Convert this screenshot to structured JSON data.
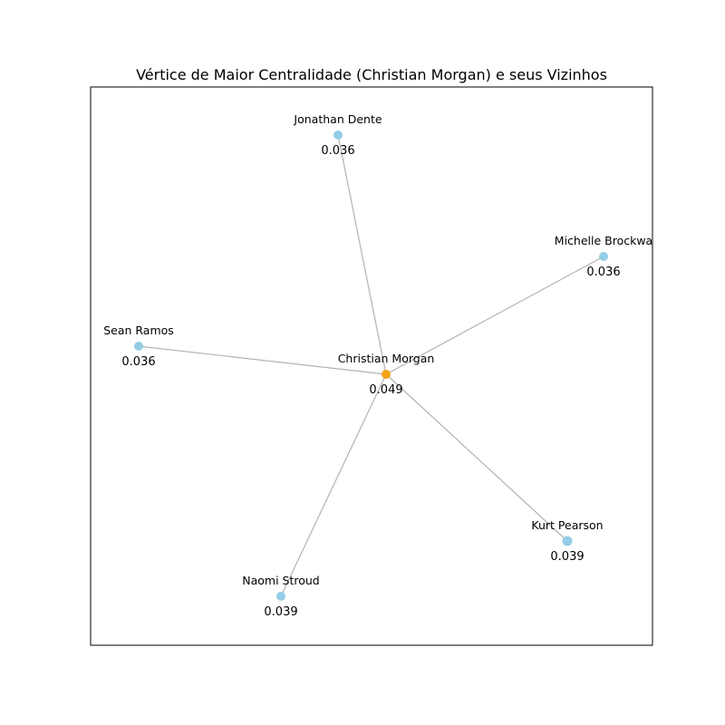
{
  "title": "Vértice de Maior Centralidade (Christian Morgan) e seus Vizinhos",
  "colors": {
    "center_node": "#f5a31a",
    "neighbor_node": "#94cde6",
    "edge": "#b3b3b3"
  },
  "center": {
    "id": "christian",
    "name": "Christian Morgan",
    "value": "0.049"
  },
  "neighbors": [
    {
      "id": "jonathan",
      "name": "Jonathan Dente",
      "value": "0.036"
    },
    {
      "id": "michelle",
      "name": "Michelle Brockwa",
      "value": "0.036"
    },
    {
      "id": "sean",
      "name": "Sean Ramos",
      "value": "0.036"
    },
    {
      "id": "kurt",
      "name": "Kurt Pearson",
      "value": "0.039"
    },
    {
      "id": "naomi",
      "name": "Naomi Stroud",
      "value": "0.039"
    }
  ]
}
